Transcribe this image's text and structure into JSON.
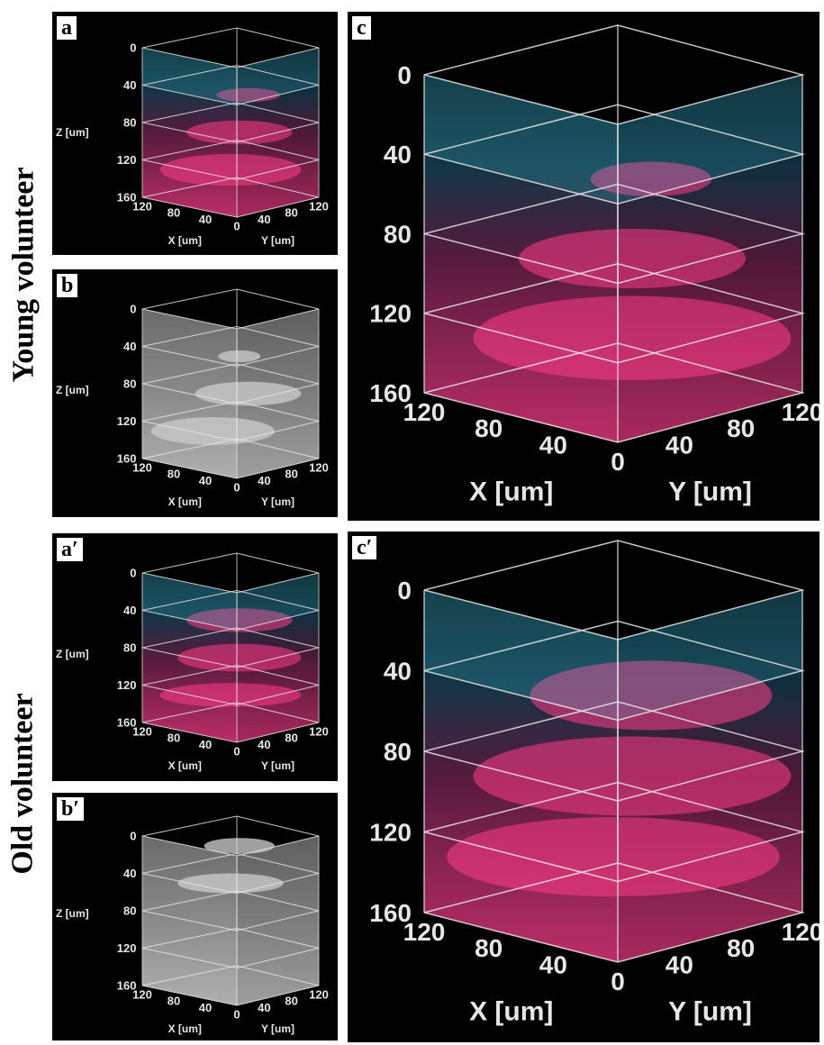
{
  "labels": {
    "young": "Young volunteer",
    "old": "Old volunteer"
  },
  "panels": [
    {
      "id": "a",
      "label": "a",
      "style": "color"
    },
    {
      "id": "b",
      "label": "b",
      "style": "gray"
    },
    {
      "id": "c",
      "label": "c",
      "style": "color"
    },
    {
      "id": "a2",
      "label": "a′",
      "style": "color"
    },
    {
      "id": "b2",
      "label": "b′",
      "style": "gray"
    },
    {
      "id": "c2",
      "label": "c′",
      "style": "color"
    }
  ],
  "axes": {
    "z_ticks": [
      "0",
      "40",
      "80",
      "120",
      "160"
    ],
    "x_ticks": [
      "120",
      "80",
      "40",
      "0"
    ],
    "y_ticks": [
      "40",
      "80",
      "120"
    ],
    "z_label": "Z [um]",
    "x_label": "X [um]",
    "y_label": "Y [um]"
  },
  "colors": {
    "cyan": "#3fc8dc",
    "magenta": "#ff3c88",
    "background": "#000000"
  }
}
